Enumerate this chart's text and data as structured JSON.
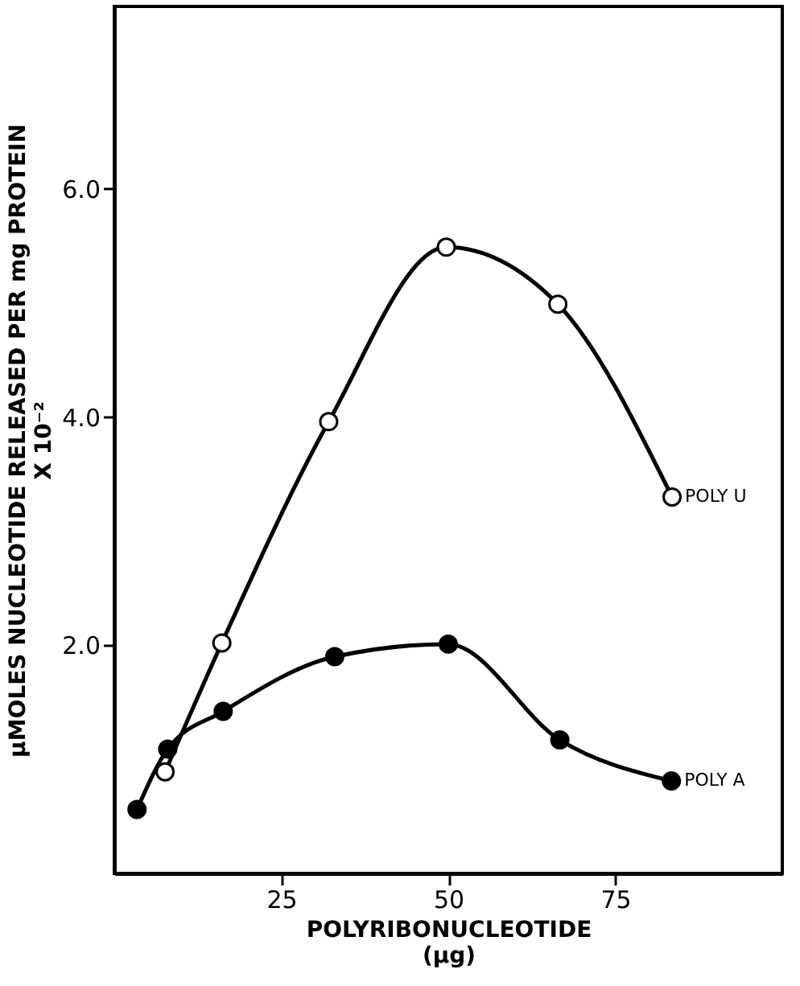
{
  "chart_data": {
    "type": "line",
    "xlabel": "POLYRIBONUCLEOTIDE\n(μg)",
    "ylabel": "μMOLES NUCLEOTIDE RELEASED PER mg PROTEIN\nX 10⁻²",
    "xlim": [
      0,
      100
    ],
    "xticks": [
      25,
      50,
      75
    ],
    "ylim": [
      0,
      7.6
    ],
    "yticks": [
      {
        "value": 2,
        "label": "2.0"
      },
      {
        "value": 4,
        "label": "4.0"
      },
      {
        "value": 6,
        "label": "6.0"
      }
    ],
    "grid": false,
    "marker": "circle",
    "line_style": "solid",
    "series": [
      {
        "name": "POLY U",
        "color": "#ffffff",
        "x": [
          7.6,
          16.1,
          32.1,
          49.7,
          66.4,
          83.5
        ],
        "values": [
          0.89,
          2.02,
          3.96,
          5.49,
          4.99,
          3.3
        ]
      },
      {
        "name": "POLY A",
        "color": "#000000",
        "x": [
          3.4,
          8.0,
          16.3,
          33.0,
          50.0,
          66.7,
          83.4
        ],
        "values": [
          0.56,
          1.09,
          1.42,
          1.9,
          2.01,
          1.17,
          0.81
        ]
      }
    ]
  }
}
